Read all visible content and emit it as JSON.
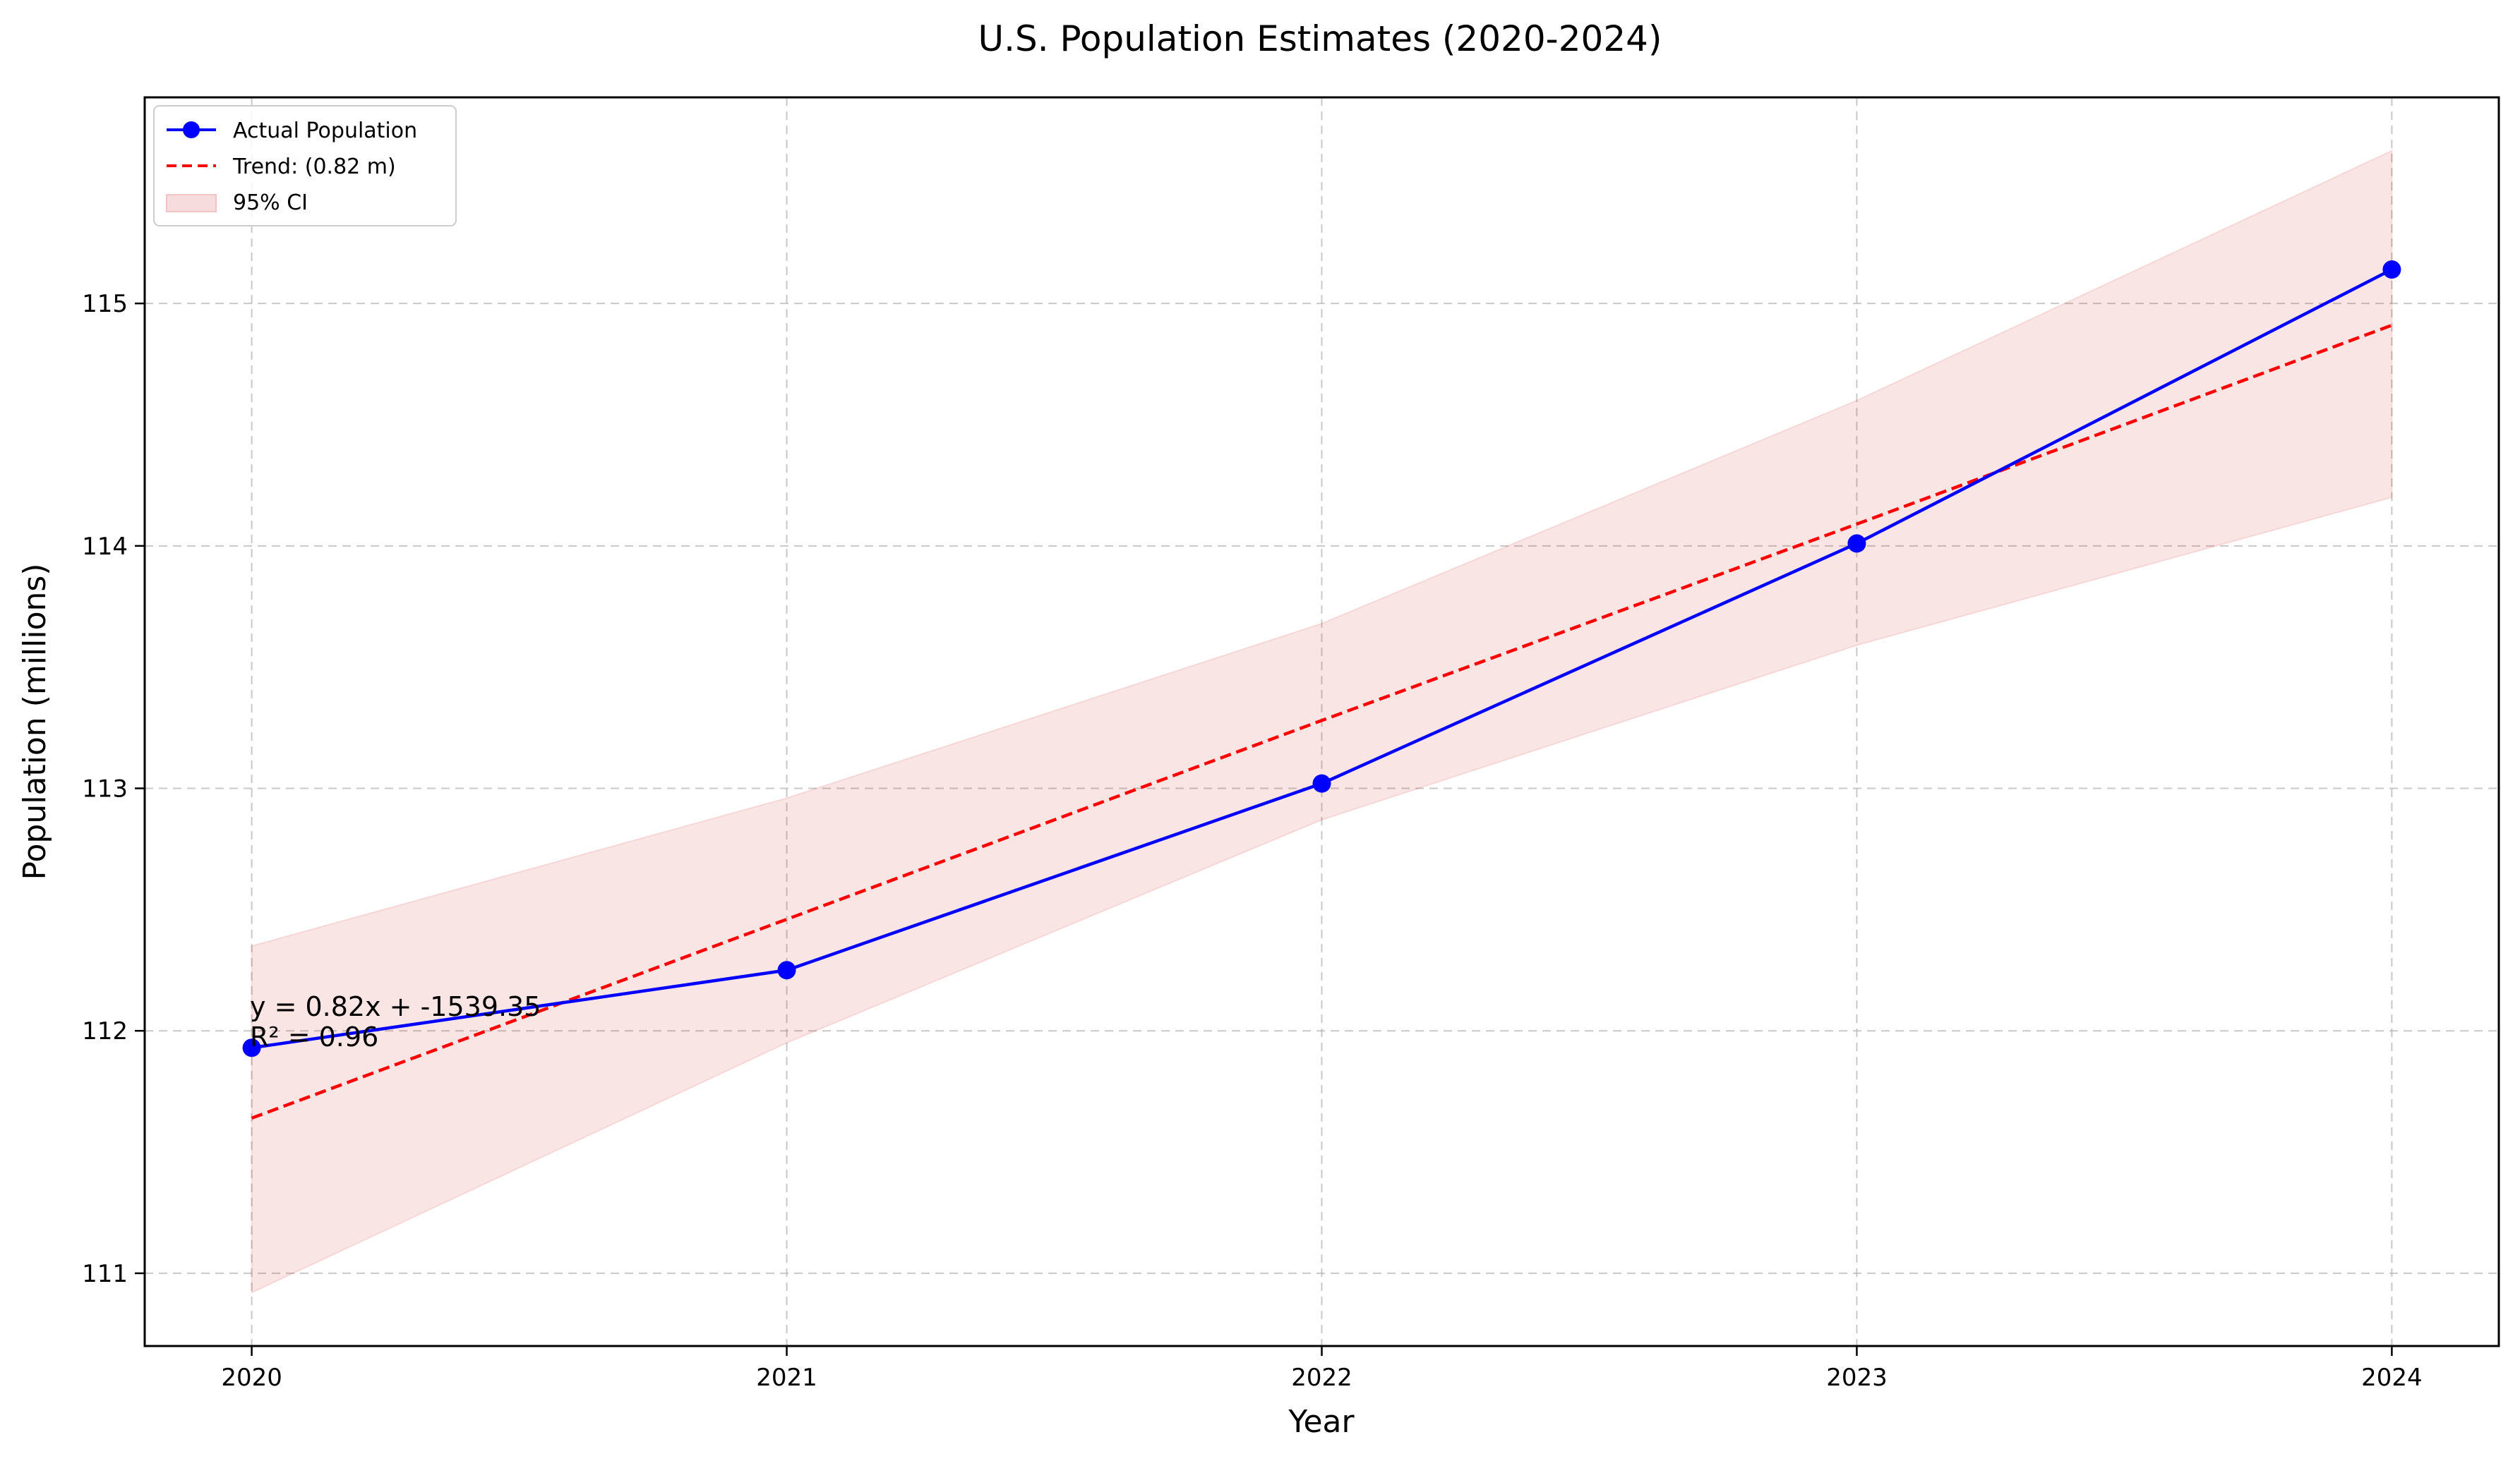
{
  "chart_data": {
    "type": "line",
    "title": "U.S. Population Estimates (2020-2024)",
    "xlabel": "Year",
    "ylabel": "Population (millions)",
    "x": [
      2020,
      2021,
      2022,
      2023,
      2024
    ],
    "xlim": [
      2019.8,
      2024.2
    ],
    "ylim": [
      110.7,
      115.85
    ],
    "xticks": [
      "2020",
      "2021",
      "2022",
      "2023",
      "2024"
    ],
    "yticks": [
      "111",
      "112",
      "113",
      "114",
      "115"
    ],
    "grid": true,
    "legend_position": "upper-left",
    "series": [
      {
        "name": "Actual Population",
        "style": "solid-line-with-markers",
        "color": "#0000ff",
        "values": [
          111.93,
          112.25,
          113.02,
          114.01,
          115.14
        ]
      },
      {
        "name": "Trend: (0.82 m)",
        "style": "dashed-line",
        "color": "#ff0000",
        "values": [
          111.64,
          112.46,
          113.28,
          114.09,
          114.91
        ]
      },
      {
        "name": "95% CI",
        "style": "shaded-band",
        "color": "#d62728",
        "lower": [
          110.92,
          111.95,
          112.87,
          113.59,
          114.2
        ],
        "upper": [
          112.35,
          112.96,
          113.68,
          114.6,
          115.63
        ]
      }
    ],
    "annotations": [
      "y = 0.82x + -1539.35",
      "R² = 0.96"
    ]
  }
}
